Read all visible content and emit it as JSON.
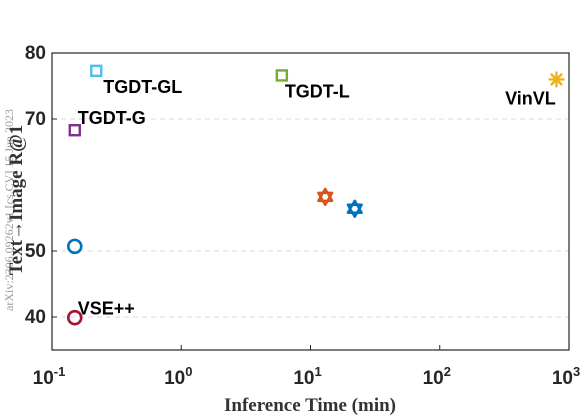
{
  "page": {
    "watermark": "arXiv:2306.09262v1  [cs.CV]  15 Jun 2023"
  },
  "chart_data": {
    "type": "scatter",
    "title": "",
    "xlabel": "Inference Time (min)",
    "ylabel": "Text→Image R@1",
    "x_scale": "log",
    "xlim": [
      0.1,
      1000
    ],
    "ylim": [
      35,
      80
    ],
    "y_ticks": [
      40,
      50,
      70,
      80
    ],
    "x_ticks": [
      {
        "value": 0.1,
        "base": "10",
        "exp": "-1"
      },
      {
        "value": 1,
        "base": "10",
        "exp": "0"
      },
      {
        "value": 10,
        "base": "10",
        "exp": "1"
      },
      {
        "value": 100,
        "base": "10",
        "exp": "2"
      },
      {
        "value": 1000,
        "base": "10",
        "exp": "3"
      }
    ],
    "grid": "horizontal-dashed",
    "points": [
      {
        "label": "TGDT-GL",
        "x": 0.22,
        "y": 77.3,
        "marker": "square",
        "color": "#4DBEEE"
      },
      {
        "label": "TGDT-L",
        "x": 6.0,
        "y": 76.6,
        "marker": "square",
        "color": "#77AC30"
      },
      {
        "label": "VinVL",
        "x": 800,
        "y": 76.0,
        "marker": "asterisk",
        "color": "#EDB120"
      },
      {
        "label": "TGDT-G",
        "x": 0.15,
        "y": 68.3,
        "marker": "square",
        "color": "#7E2F8E"
      },
      {
        "label": "",
        "x": 13,
        "y": 58.2,
        "marker": "hexagram",
        "color": "#D95319"
      },
      {
        "label": "",
        "x": 22,
        "y": 56.4,
        "marker": "hexagram",
        "color": "#0072BD"
      },
      {
        "label": "",
        "x": 0.15,
        "y": 50.7,
        "marker": "circle",
        "color": "#0072BD"
      },
      {
        "label": "VSE++",
        "x": 0.15,
        "y": 39.9,
        "marker": "circle",
        "color": "#A2142F"
      }
    ]
  }
}
